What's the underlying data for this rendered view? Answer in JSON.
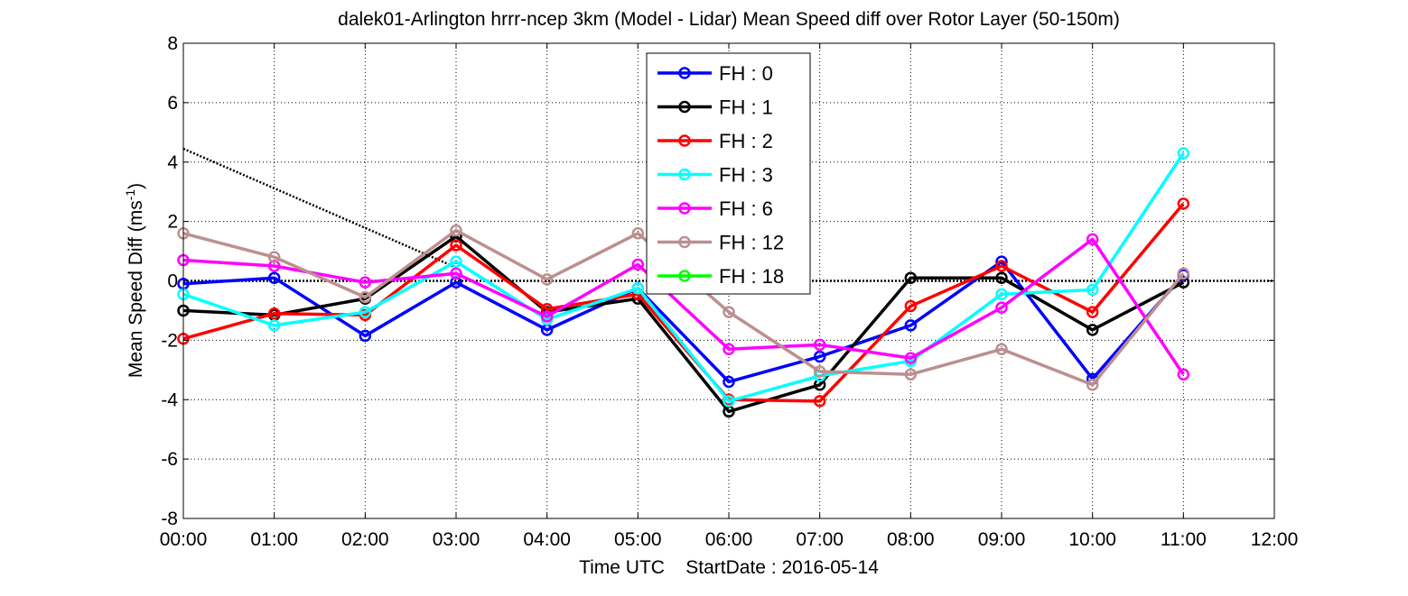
{
  "chart_data": {
    "type": "line",
    "title": "dalek01-Arlington hrrr-ncep 3km (Model - Lidar) Mean Speed diff over Rotor Layer (50-150m)",
    "xlabel": "Time UTC    StartDate : 2016-05-14",
    "ylabel": "Mean Speed Diff (ms",
    "ylabel_sup": "-1",
    "ylabel_end": ")",
    "x_ticks": [
      "00:00",
      "01:00",
      "02:00",
      "03:00",
      "04:00",
      "05:00",
      "06:00",
      "07:00",
      "08:00",
      "09:00",
      "10:00",
      "11:00",
      "12:00"
    ],
    "xlim": [
      0,
      12
    ],
    "y_ticks": [
      "-8",
      "-6",
      "-4",
      "-2",
      "0",
      "2",
      "4",
      "6",
      "8"
    ],
    "ylim": [
      -8,
      8
    ],
    "grid": true,
    "legend_position": "top-center",
    "series": [
      {
        "name": "FH : 0",
        "color": "#0000ff",
        "values": [
          -0.1,
          0.1,
          -1.85,
          -0.05,
          -1.65,
          -0.25,
          -3.4,
          -2.55,
          -1.5,
          0.65,
          -3.3,
          0.2
        ]
      },
      {
        "name": "FH : 1",
        "color": "#000000",
        "values": [
          -1.0,
          -1.15,
          -0.6,
          1.5,
          -1.05,
          -0.6,
          -4.4,
          -3.5,
          0.1,
          0.1,
          -1.65,
          -0.05
        ]
      },
      {
        "name": "FH : 2",
        "color": "#ff0000",
        "values": [
          -1.95,
          -1.1,
          -1.15,
          1.2,
          -0.95,
          -0.45,
          -4.0,
          -4.05,
          -0.85,
          0.5,
          -1.05,
          2.6
        ]
      },
      {
        "name": "FH : 3",
        "color": "#00ffff",
        "values": [
          -0.45,
          -1.5,
          -1.05,
          0.65,
          -1.3,
          -0.25,
          -4.05,
          -3.2,
          -2.7,
          -0.45,
          -0.3,
          4.3
        ]
      },
      {
        "name": "FH : 6",
        "color": "#ff00ff",
        "values": [
          0.7,
          0.5,
          -0.05,
          0.25,
          -1.2,
          0.55,
          -2.3,
          -2.15,
          -2.6,
          -0.9,
          1.4,
          -3.15
        ]
      },
      {
        "name": "FH : 12",
        "color": "#bc8f8f",
        "values": [
          1.6,
          0.8,
          -0.55,
          1.7,
          0.05,
          1.6,
          -1.05,
          -3.05,
          -3.15,
          -2.3,
          -3.5,
          0.25
        ]
      },
      {
        "name": "FH : 18",
        "color": "#00ff00",
        "values": []
      }
    ],
    "reference_lines": [
      {
        "style": "dotted",
        "color": "#000000",
        "x": [
          0,
          12
        ],
        "y": [
          0,
          0
        ]
      },
      {
        "style": "dotted",
        "color": "#000000",
        "x": [
          0,
          3
        ],
        "y": [
          4.45,
          0.45
        ]
      }
    ]
  }
}
